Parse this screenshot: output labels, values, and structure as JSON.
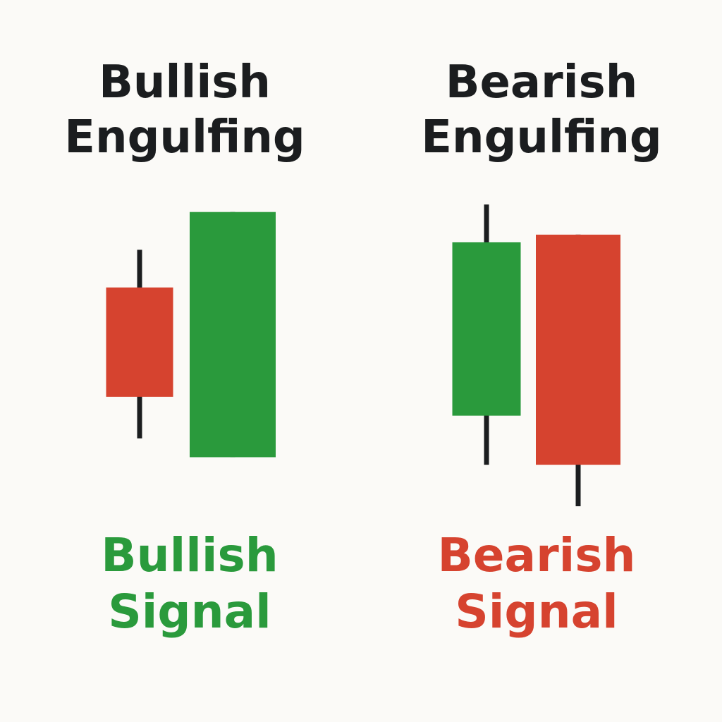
{
  "colors": {
    "bullish": "#2A9A3C",
    "bearish": "#D6432F",
    "wick": "#1B1D1F",
    "background": "#FBFAF7",
    "heading_text": "#1B1D1F"
  },
  "patterns": [
    {
      "key": "bullish",
      "heading_line1": "Bullish",
      "heading_line2": "Engulfing",
      "signal_line1": "Bullish",
      "signal_line2": "Signal",
      "candles": [
        {
          "direction": "bearish",
          "high": 68,
          "open": 58,
          "close": 29,
          "low": 18
        },
        {
          "direction": "bullish",
          "high": 78,
          "open": 13,
          "close": 78,
          "low": 13
        }
      ]
    },
    {
      "key": "bearish",
      "heading_line1": "Bearish",
      "heading_line2": "Engulfing",
      "signal_line1": "Bearish",
      "signal_line2": "Signal",
      "candles": [
        {
          "direction": "bullish",
          "high": 80,
          "open": 24,
          "close": 70,
          "low": 11
        },
        {
          "direction": "bearish",
          "high": 72,
          "open": 72,
          "close": 11,
          "low": 0
        }
      ]
    }
  ]
}
